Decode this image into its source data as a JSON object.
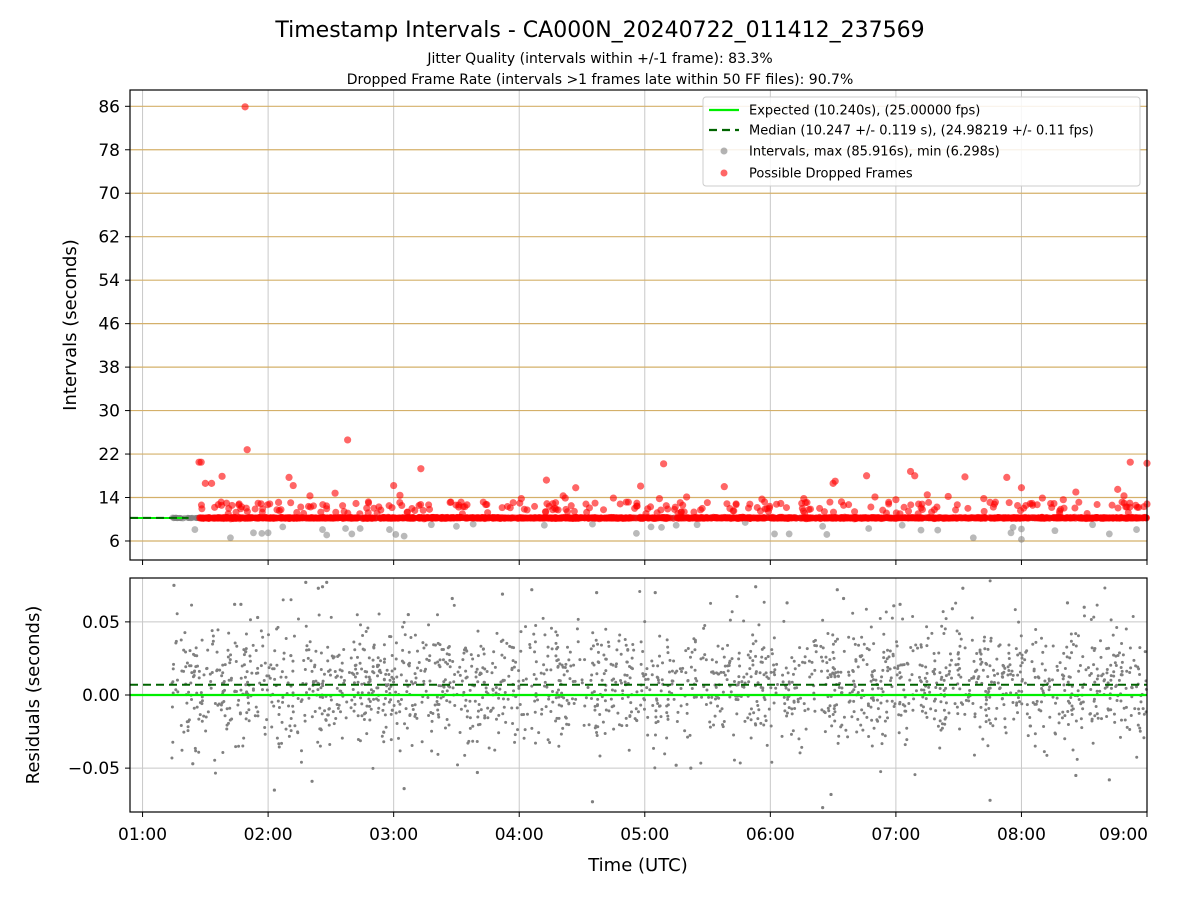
{
  "chart_data": [
    {
      "type": "scatter",
      "title": "Timestamp Intervals - CA000N_20240722_011412_237569",
      "subtitle_lines": [
        "Jitter Quality (intervals within +/-1 frame): 83.3%",
        "Dropped Frame Rate (intervals >1 frames late within 50 FF files): 90.7%"
      ],
      "ylabel": "Intervals (seconds)",
      "ylim": [
        2.5,
        89
      ],
      "yticks": [
        6,
        14,
        22,
        30,
        38,
        46,
        54,
        62,
        70,
        78,
        86
      ],
      "ytick_labels": [
        "6",
        "14",
        "22",
        "30",
        "38",
        "46",
        "54",
        "62",
        "70",
        "78",
        "86"
      ],
      "xlim": [
        "00:54",
        "09:00"
      ],
      "grid": "horizontal lines at y ticks (tan), vertical lines at hour ticks (gray)",
      "legend_position": "top-right",
      "legend": [
        "Expected (10.240s), (25.00000 fps)",
        "Median (10.247 +/- 0.119 s), (24.98219 +/- 0.11 fps)",
        "Intervals, max (85.916s), min (6.298s)",
        "Possible Dropped Frames"
      ],
      "expected_interval": 10.24,
      "median_interval": 10.247,
      "data_start": "01:14",
      "data_end": "09:00",
      "series": [
        {
          "name": "Intervals, max (85.916s), min (6.298s)",
          "color": "#808080",
          "baseline": 10.24,
          "points": [
            [
              "01:25",
              8.1
            ],
            [
              "01:42",
              6.6
            ],
            [
              "01:53",
              7.5
            ],
            [
              "01:57",
              7.4
            ],
            [
              "02:00",
              7.5
            ],
            [
              "02:07",
              8.6
            ],
            [
              "02:26",
              8.1
            ],
            [
              "02:28",
              7.1
            ],
            [
              "02:37",
              8.3
            ],
            [
              "02:40",
              7.3
            ],
            [
              "02:44",
              8.3
            ],
            [
              "02:58",
              8.1
            ],
            [
              "03:01",
              7.2
            ],
            [
              "03:05",
              6.9
            ],
            [
              "03:18",
              9.0
            ],
            [
              "03:30",
              8.7
            ],
            [
              "03:38",
              9.1
            ],
            [
              "04:12",
              8.9
            ],
            [
              "04:35",
              9.1
            ],
            [
              "04:56",
              7.4
            ],
            [
              "05:03",
              8.6
            ],
            [
              "05:08",
              8.5
            ],
            [
              "05:15",
              8.9
            ],
            [
              "05:25",
              9.0
            ],
            [
              "05:48",
              9.4
            ],
            [
              "06:02",
              7.3
            ],
            [
              "06:09",
              7.3
            ],
            [
              "06:25",
              8.7
            ],
            [
              "06:27",
              7.2
            ],
            [
              "06:47",
              8.3
            ],
            [
              "07:03",
              8.9
            ],
            [
              "07:12",
              8.0
            ],
            [
              "07:20",
              8.0
            ],
            [
              "07:37",
              6.6
            ],
            [
              "07:55",
              7.5
            ],
            [
              "07:56",
              8.5
            ],
            [
              "08:00",
              6.3
            ],
            [
              "08:00",
              8.2
            ],
            [
              "08:16",
              7.9
            ],
            [
              "08:34",
              9.0
            ],
            [
              "08:42",
              7.3
            ],
            [
              "08:55",
              8.1
            ]
          ]
        },
        {
          "name": "Possible Dropped Frames",
          "color": "#ff0000",
          "baseline": 10.24,
          "points": [
            [
              "01:49",
              85.9
            ],
            [
              "01:50",
              22.8
            ],
            [
              "02:38",
              24.6
            ],
            [
              "01:27",
              20.5
            ],
            [
              "01:28",
              20.5
            ],
            [
              "03:13",
              19.3
            ],
            [
              "05:09",
              20.2
            ],
            [
              "07:07",
              18.8
            ],
            [
              "08:52",
              20.5
            ],
            [
              "09:00",
              20.3
            ],
            [
              "01:38",
              17.9
            ],
            [
              "02:10",
              17.7
            ],
            [
              "02:12",
              16.2
            ],
            [
              "03:00",
              16.2
            ],
            [
              "04:13",
              17.2
            ],
            [
              "06:31",
              17.0
            ],
            [
              "06:46",
              18.0
            ],
            [
              "07:09",
              18.0
            ],
            [
              "07:33",
              17.8
            ],
            [
              "07:53",
              17.7
            ],
            [
              "08:00",
              15.8
            ],
            [
              "01:30",
              16.6
            ],
            [
              "01:33",
              16.6
            ],
            [
              "02:20",
              14.3
            ],
            [
              "02:32",
              14.8
            ],
            [
              "03:03",
              14.4
            ],
            [
              "03:27",
              13.1
            ],
            [
              "03:44",
              12.7
            ],
            [
              "04:01",
              13.8
            ],
            [
              "04:21",
              14.3
            ],
            [
              "04:22",
              13.9
            ],
            [
              "04:27",
              15.8
            ],
            [
              "04:45",
              13.9
            ],
            [
              "04:58",
              16.1
            ],
            [
              "05:07",
              13.8
            ],
            [
              "05:20",
              14.1
            ],
            [
              "05:38",
              16.0
            ],
            [
              "05:56",
              13.7
            ],
            [
              "06:16",
              13.8
            ],
            [
              "06:30",
              16.6
            ],
            [
              "06:34",
              13.2
            ],
            [
              "06:50",
              14.1
            ],
            [
              "07:00",
              13.6
            ],
            [
              "07:15",
              14.5
            ],
            [
              "07:25",
              14.2
            ],
            [
              "07:42",
              13.8
            ],
            [
              "07:45",
              13.1
            ],
            [
              "08:10",
              13.9
            ],
            [
              "08:20",
              13.6
            ],
            [
              "08:26",
              15.0
            ],
            [
              "08:46",
              15.5
            ],
            [
              "08:49",
              14.3
            ],
            [
              "09:00",
              12.8
            ],
            [
              "02:05",
              13.1
            ],
            [
              "02:42",
              12.9
            ],
            [
              "03:34",
              12.3
            ],
            [
              "06:05",
              12.9
            ]
          ]
        }
      ]
    },
    {
      "type": "scatter",
      "ylabel": "Residuals (seconds)",
      "xlabel": "Time (UTC)",
      "ylim": [
        -0.08,
        0.08
      ],
      "yticks": [
        -0.05,
        0.0,
        0.05
      ],
      "ytick_labels": [
        "−0.05",
        "0.00",
        "0.05"
      ],
      "xlim": [
        "00:54",
        "09:00"
      ],
      "xticks": [
        "01:00",
        "02:00",
        "03:00",
        "04:00",
        "05:00",
        "06:00",
        "07:00",
        "08:00",
        "09:00"
      ],
      "expected_residual": 0.0,
      "median_residual": 0.007,
      "grid": "on",
      "series": [
        {
          "color": "#808080",
          "spread_std": 0.02,
          "points": [
            [
              "01:15",
              0.075
            ],
            [
              "01:44",
              0.062
            ],
            [
              "01:47",
              0.062
            ],
            [
              "01:55",
              0.053
            ],
            [
              "02:18",
              0.077
            ],
            [
              "02:24",
              0.073
            ],
            [
              "02:26",
              0.074
            ],
            [
              "02:28",
              0.077
            ],
            [
              "03:07",
              0.055
            ],
            [
              "03:28",
              0.066
            ],
            [
              "03:52",
              0.069
            ],
            [
              "04:06",
              0.072
            ],
            [
              "04:37",
              0.07
            ],
            [
              "05:05",
              0.07
            ],
            [
              "05:53",
              0.074
            ],
            [
              "06:08",
              0.063
            ],
            [
              "06:32",
              0.072
            ],
            [
              "06:35",
              0.066
            ],
            [
              "06:59",
              0.061
            ],
            [
              "07:02",
              0.062
            ],
            [
              "07:27",
              0.059
            ],
            [
              "07:32",
              0.073
            ],
            [
              "08:22",
              0.063
            ],
            [
              "08:30",
              0.06
            ],
            [
              "03:05",
              -0.064
            ],
            [
              "02:03",
              -0.065
            ],
            [
              "02:21",
              -0.059
            ],
            [
              "04:35",
              -0.073
            ],
            [
              "05:22",
              -0.05
            ],
            [
              "06:25",
              -0.077
            ],
            [
              "06:29",
              -0.068
            ],
            [
              "07:45",
              -0.072
            ],
            [
              "08:26",
              -0.055
            ],
            [
              "08:42",
              -0.058
            ],
            [
              "01:24",
              -0.047
            ],
            [
              "05:15",
              -0.048
            ],
            [
              "03:40",
              -0.053
            ]
          ]
        }
      ]
    }
  ],
  "colors": {
    "expected": "#00ee00",
    "median": "#006400",
    "intervals": "#808080",
    "dropped": "#ff0000",
    "hgrid_top": "#d4b06a",
    "grid": "#c8c8c8"
  }
}
